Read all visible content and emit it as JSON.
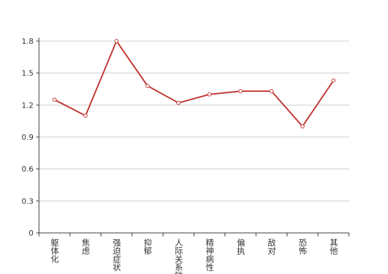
{
  "chart_data": {
    "type": "line",
    "categories": [
      "躯体化",
      "焦虑",
      "强迫症状",
      "抑郁",
      "人际关系敏感",
      "精神病性",
      "偏执",
      "敌对",
      "恐怖",
      "其他"
    ],
    "series": [
      {
        "color": "#c23531",
        "values": [
          1.25,
          1.1,
          1.8,
          1.38,
          1.22,
          1.3,
          1.33,
          1.33,
          1.0,
          1.43
        ]
      }
    ],
    "ylim": [
      0,
      1.8
    ],
    "yticks": [
      0,
      0.3,
      0.6,
      0.9,
      1.2,
      1.5,
      1.8
    ],
    "grid": true
  }
}
